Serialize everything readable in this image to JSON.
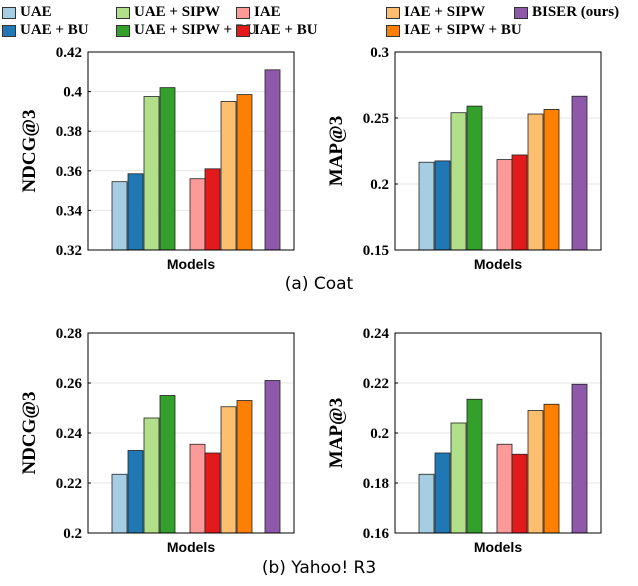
{
  "legend": [
    {
      "label": "UAE",
      "color": "#a6cee3"
    },
    {
      "label": "UAE + SIPW",
      "color": "#b2df8a"
    },
    {
      "label": "IAE",
      "color": "#fb9a99"
    },
    {
      "label": "IAE + SIPW",
      "color": "#fdbf6f"
    },
    {
      "label": "BISER (ours)",
      "color": "#8e59a8"
    },
    {
      "label": "UAE + BU",
      "color": "#1f78b4"
    },
    {
      "label": "UAE + SIPW + BU",
      "color": "#33a02c"
    },
    {
      "label": "IAE + BU",
      "color": "#e31a1c"
    },
    {
      "label": "IAE + SIPW + BU",
      "color": "#ff7f00"
    }
  ],
  "captions": {
    "a": "(a) Coat",
    "b": "(b) Yahoo! R3"
  },
  "chart_data": [
    {
      "type": "bar",
      "xlabel": "Models",
      "ylabel": "NDCG@3",
      "ylim": [
        0.32,
        0.42
      ],
      "yticks": [
        "0.32",
        "0.34",
        "0.36",
        "0.38",
        "0.4",
        "0.42"
      ],
      "series": [
        "UAE",
        "UAE + BU",
        "UAE + SIPW",
        "UAE + SIPW + BU",
        "IAE",
        "IAE + BU",
        "IAE + SIPW",
        "IAE + SIPW + BU",
        "BISER (ours)"
      ],
      "values": [
        0.3545,
        0.3585,
        0.3975,
        0.402,
        0.356,
        0.361,
        0.395,
        0.3985,
        0.411
      ]
    },
    {
      "type": "bar",
      "xlabel": "Models",
      "ylabel": "MAP@3",
      "ylim": [
        0.15,
        0.3
      ],
      "yticks": [
        "0.15",
        "0.2",
        "0.25",
        "0.3"
      ],
      "series": [
        "UAE",
        "UAE + BU",
        "UAE + SIPW",
        "UAE + SIPW + BU",
        "IAE",
        "IAE + BU",
        "IAE + SIPW",
        "IAE + SIPW + BU",
        "BISER (ours)"
      ],
      "values": [
        0.2165,
        0.2175,
        0.254,
        0.259,
        0.2185,
        0.222,
        0.253,
        0.2565,
        0.2665
      ]
    },
    {
      "type": "bar",
      "xlabel": "Models",
      "ylabel": "NDCG@3",
      "ylim": [
        0.2,
        0.28
      ],
      "yticks": [
        "0.2",
        "0.22",
        "0.24",
        "0.26",
        "0.28"
      ],
      "series": [
        "UAE",
        "UAE + BU",
        "UAE + SIPW",
        "UAE + SIPW + BU",
        "IAE",
        "IAE + BU",
        "IAE + SIPW",
        "IAE + SIPW + BU",
        "BISER (ours)"
      ],
      "values": [
        0.2235,
        0.233,
        0.246,
        0.255,
        0.2355,
        0.232,
        0.2505,
        0.253,
        0.261
      ]
    },
    {
      "type": "bar",
      "xlabel": "Models",
      "ylabel": "MAP@3",
      "ylim": [
        0.16,
        0.24
      ],
      "yticks": [
        "0.16",
        "0.18",
        "0.2",
        "0.22",
        "0.24"
      ],
      "series": [
        "UAE",
        "UAE + BU",
        "UAE + SIPW",
        "UAE + SIPW + BU",
        "IAE",
        "IAE + BU",
        "IAE + SIPW",
        "IAE + SIPW + BU",
        "BISER (ours)"
      ],
      "values": [
        0.1835,
        0.192,
        0.204,
        0.2135,
        0.1955,
        0.1915,
        0.209,
        0.2115,
        0.2195
      ]
    }
  ]
}
